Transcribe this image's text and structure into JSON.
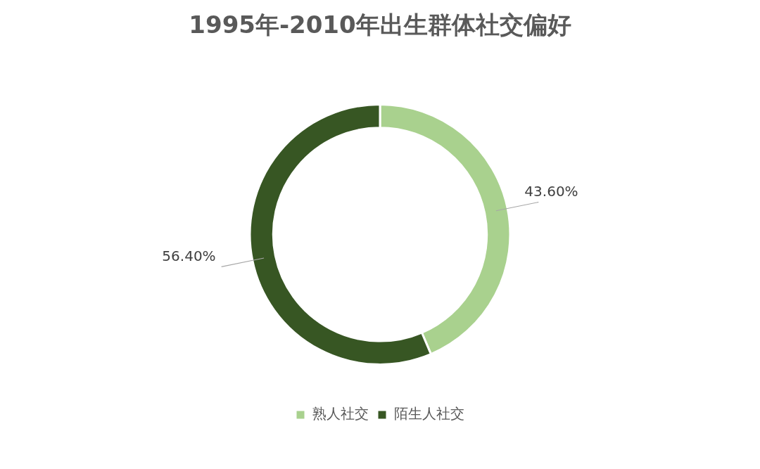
{
  "chart_data": {
    "type": "donut",
    "title": "1995年-2010年出生群体社交偏好",
    "categories": [
      "熟人社交",
      "陌生人社交"
    ],
    "values": [
      43.6,
      56.4
    ],
    "colors": [
      "#a9d18e",
      "#375623"
    ],
    "value_labels": [
      "43.60%",
      "56.40%"
    ],
    "legend": "bottom"
  }
}
